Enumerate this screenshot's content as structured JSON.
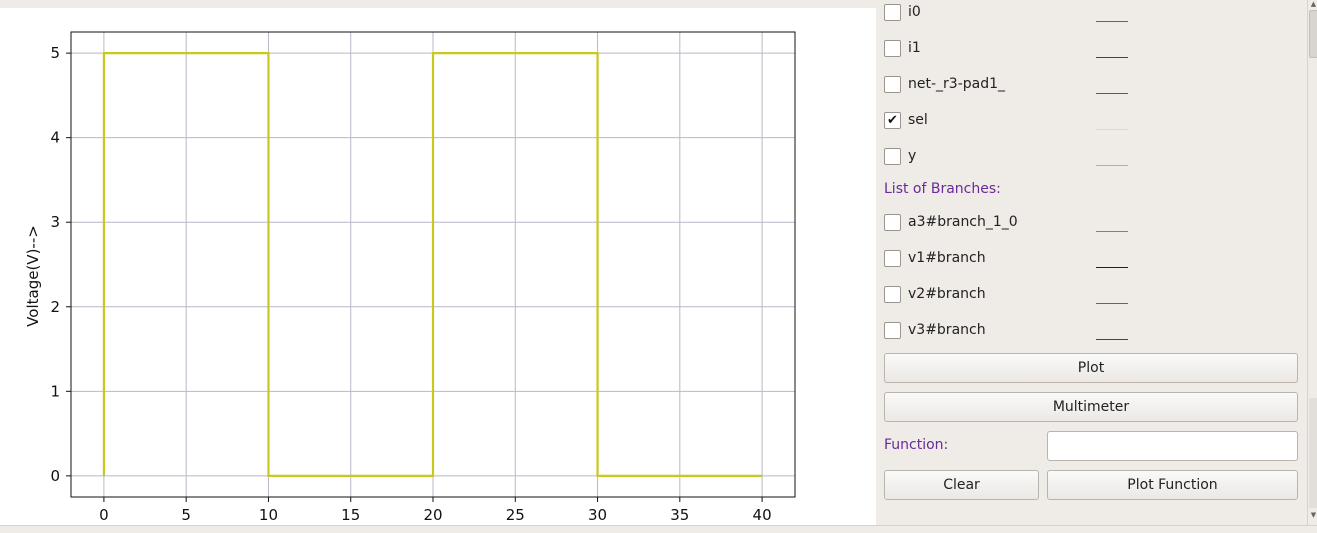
{
  "plot": {
    "ylabel": "Voltage(V)-->",
    "chart_data": {
      "type": "line",
      "title": "",
      "xlabel": "",
      "ylabel": "Voltage(V)-->",
      "xlim": [
        -2,
        42
      ],
      "ylim": [
        -0.25,
        5.25
      ],
      "x_ticks": [
        0,
        5,
        10,
        15,
        20,
        25,
        30,
        35,
        40
      ],
      "y_ticks": [
        0,
        1,
        2,
        3,
        4,
        5
      ],
      "grid": true,
      "series": [
        {
          "color": "#c8c81e",
          "x": [
            0,
            0,
            10,
            10,
            20,
            20,
            30,
            30,
            40
          ],
          "y": [
            0,
            5,
            5,
            0,
            0,
            5,
            5,
            0,
            0
          ]
        }
      ]
    }
  },
  "panel": {
    "nodes": [
      {
        "label": "i0",
        "checked": false,
        "check_mark": "",
        "color": "#e03030"
      },
      {
        "label": "i1",
        "checked": false,
        "check_mark": "",
        "color": "#3030e0"
      },
      {
        "label": "net-_r3-pad1_",
        "checked": false,
        "check_mark": "",
        "color": "#208020"
      },
      {
        "label": "sel",
        "checked": true,
        "check_mark": "✔",
        "color": "#f0f020"
      },
      {
        "label": "y",
        "checked": false,
        "check_mark": "",
        "color": "#40e0e0"
      }
    ],
    "branches_heading": "List of Branches:",
    "branches": [
      {
        "label": "a3#branch_1_0",
        "checked": false,
        "check_mark": "",
        "color": "#e040e0"
      },
      {
        "label": "v1#branch",
        "checked": false,
        "check_mark": "",
        "color": "#202020"
      },
      {
        "label": "v2#branch",
        "checked": false,
        "check_mark": "",
        "color": "#e03030"
      },
      {
        "label": "v3#branch",
        "checked": false,
        "check_mark": "",
        "color": "#3030e0"
      }
    ],
    "plot_button": "Plot",
    "multimeter_button": "Multimeter",
    "function_label": "Function:",
    "function_value": "",
    "clear_button": "Clear",
    "plot_function_button": "Plot Function"
  }
}
